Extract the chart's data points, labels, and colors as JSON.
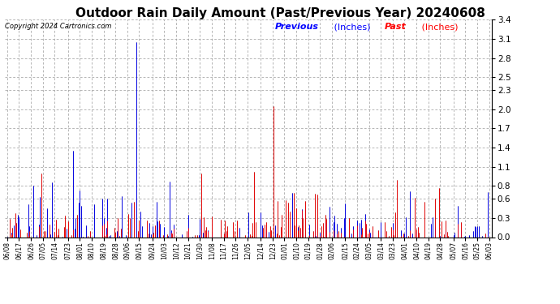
{
  "title": "Outdoor Rain Daily Amount (Past/Previous Year) 20240608",
  "copyright": "Copyright 2024 Cartronics.com",
  "legend_previous": "Previous",
  "legend_past": "Past",
  "legend_units": "(Inches)",
  "color_previous": "#0000ff",
  "color_past": "#ff0000",
  "color_black": "#000000",
  "color_bg": "#ffffff",
  "color_grid": "#999999",
  "yticks": [
    0.0,
    0.3,
    0.6,
    0.8,
    1.1,
    1.4,
    1.7,
    2.0,
    2.3,
    2.5,
    2.8,
    3.1,
    3.4
  ],
  "ylim": [
    0.0,
    3.4
  ],
  "x_labels": [
    "06/08",
    "06/17",
    "06/26",
    "07/05",
    "07/14",
    "07/23",
    "08/01",
    "08/10",
    "08/19",
    "08/28",
    "09/06",
    "09/15",
    "09/24",
    "10/03",
    "10/12",
    "10/21",
    "10/30",
    "11/08",
    "11/17",
    "11/26",
    "12/05",
    "12/14",
    "12/23",
    "01/01",
    "01/10",
    "01/19",
    "01/28",
    "02/06",
    "02/15",
    "02/24",
    "03/05",
    "03/14",
    "03/23",
    "04/01",
    "04/10",
    "04/19",
    "04/28",
    "05/07",
    "05/16",
    "05/25",
    "06/03"
  ],
  "n_points": 366,
  "seed": 42,
  "title_fontsize": 11,
  "copyright_fontsize": 6,
  "legend_fontsize": 8,
  "ytick_fontsize": 7.5,
  "xtick_fontsize": 5.5
}
